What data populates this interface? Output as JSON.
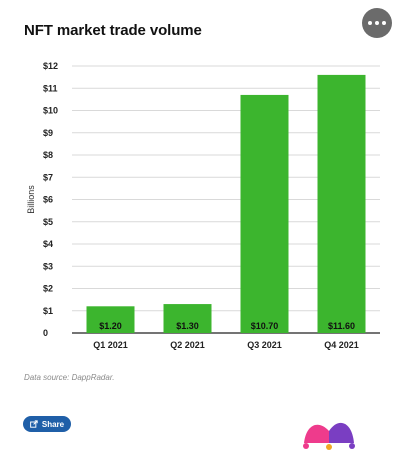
{
  "header": {
    "title": "NFT market trade volume",
    "menu_icon": "more-dots-icon"
  },
  "footer": {
    "source": "Data source: DappRadar.",
    "share_label": "Share",
    "share_icon": "share-icon"
  },
  "colors": {
    "bar": "#3cb52e",
    "grid": "#d9d9d9",
    "share": "#1f5fa8"
  },
  "chart_data": {
    "type": "bar",
    "title": "NFT market trade volume",
    "ylabel": "Billions",
    "xlabel": "",
    "categories": [
      "Q1 2021",
      "Q2 2021",
      "Q3 2021",
      "Q4 2021"
    ],
    "values": [
      1.2,
      1.3,
      10.7,
      11.6
    ],
    "data_labels": [
      "$1.20",
      "$1.30",
      "$10.70",
      "$11.60"
    ],
    "ylim": [
      0,
      12
    ],
    "yticks": [
      0,
      1,
      2,
      3,
      4,
      5,
      6,
      7,
      8,
      9,
      10,
      11,
      12
    ],
    "ytick_labels": [
      "0",
      "$1",
      "$2",
      "$3",
      "$4",
      "$5",
      "$6",
      "$7",
      "$8",
      "$9",
      "$10",
      "$11",
      "$12"
    ],
    "grid": true,
    "legend": "none"
  }
}
